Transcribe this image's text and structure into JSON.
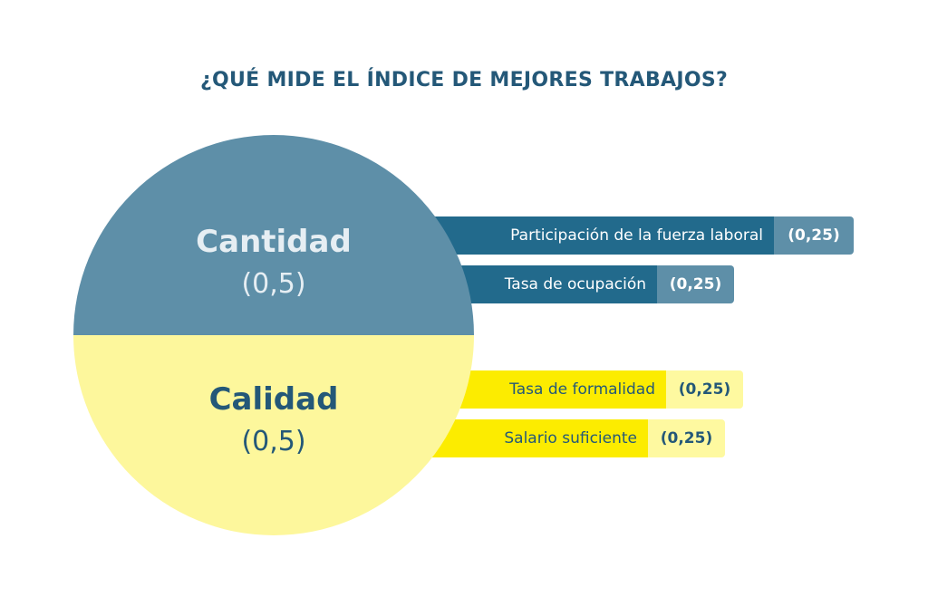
{
  "title": "¿QUÉ MIDE EL ÍNDICE DE MEJORES TRABAJOS?",
  "circle": {
    "top": {
      "name": "Cantidad",
      "weight": "(0,5)"
    },
    "bottom": {
      "name": "Calidad",
      "weight": "(0,5)"
    }
  },
  "bars": [
    {
      "label": "Participación de la fuerza laboral",
      "value": "(0,25)"
    },
    {
      "label": "Tasa de ocupación",
      "value": "(0,25)"
    },
    {
      "label": "Tasa de formalidad",
      "value": "(0,25)"
    },
    {
      "label": "Salario suficiente",
      "value": "(0,25)"
    }
  ],
  "colors": {
    "title": "#245878",
    "cantidad_dark": "#226a8c",
    "cantidad_light": "#5e8fa8",
    "calidad_dark": "#fcec00",
    "calidad_light": "#fdf79c"
  }
}
